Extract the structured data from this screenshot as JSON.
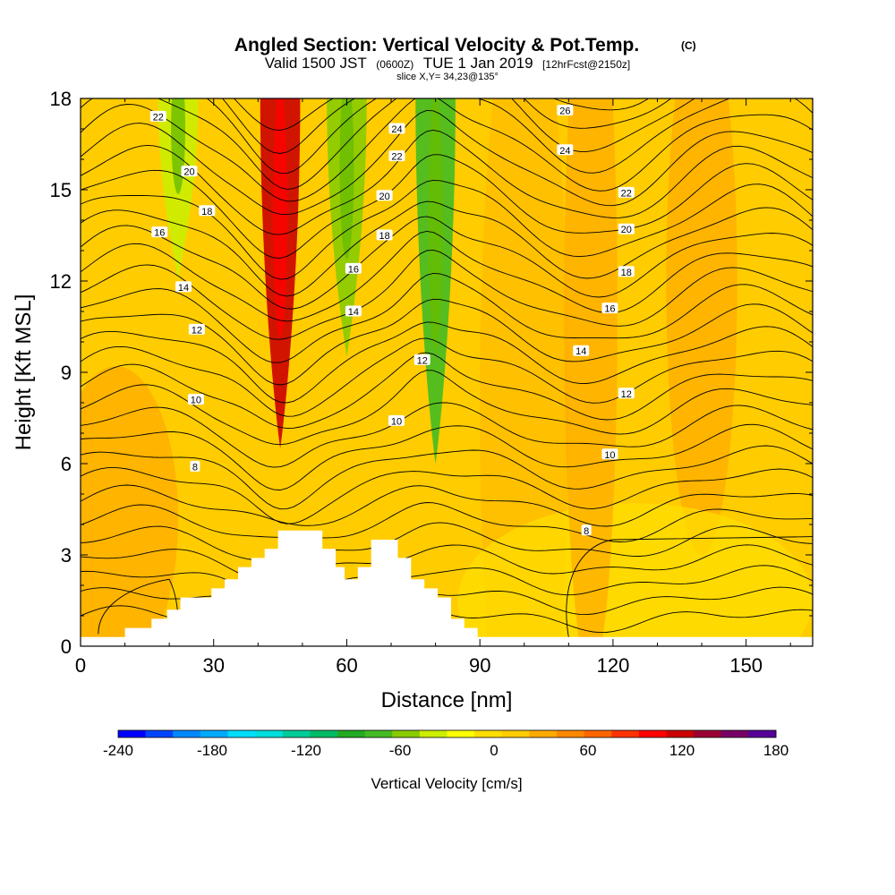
{
  "header": {
    "title": "Angled Section: Vertical Velocity & Pot.Temp.",
    "title_unit": "(C)",
    "valid_prefix": "Valid 1500 JST",
    "valid_zulu": "(0600Z)",
    "valid_date": "TUE 1 Jan 2019",
    "forecast": "[12hrFcst@2150z]",
    "slice": "slice X,Y= 34,23@135°"
  },
  "chart_data": {
    "type": "heatmap",
    "xlabel": "Distance [nm]",
    "ylabel": "Height [Kft MSL]",
    "xlim": [
      0,
      165
    ],
    "ylim": [
      0,
      18
    ],
    "x_ticks": [
      "0",
      "30",
      "60",
      "90",
      "120",
      "150"
    ],
    "y_ticks": [
      "0",
      "3",
      "6",
      "9",
      "12",
      "15",
      "18"
    ],
    "background_color": "#ffcc00",
    "updrafts": [
      {
        "x": 45,
        "z_min": 6.5,
        "z_max": 18,
        "value": 110
      },
      {
        "x": 60,
        "z_min": 9.5,
        "z_max": 18,
        "value": -50
      },
      {
        "x": 80,
        "z_min": 6,
        "z_max": 18,
        "value": -70
      },
      {
        "x": 22,
        "z_min": 12,
        "z_max": 18,
        "value": -40
      }
    ],
    "terrain_kft": [
      [
        0,
        0.3
      ],
      [
        10,
        0.3
      ],
      [
        10,
        0.6
      ],
      [
        16,
        0.6
      ],
      [
        16,
        0.9
      ],
      [
        19.5,
        0.9
      ],
      [
        19.5,
        1.2
      ],
      [
        22.5,
        1.2
      ],
      [
        22.5,
        1.6
      ],
      [
        29.5,
        1.6
      ],
      [
        29.5,
        1.9
      ],
      [
        32.5,
        1.9
      ],
      [
        32.5,
        2.2
      ],
      [
        35.5,
        2.2
      ],
      [
        35.5,
        2.6
      ],
      [
        38.5,
        2.6
      ],
      [
        38.5,
        2.9
      ],
      [
        41.5,
        2.9
      ],
      [
        41.5,
        3.2
      ],
      [
        44.5,
        3.2
      ],
      [
        44.5,
        3.8
      ],
      [
        54.5,
        3.8
      ],
      [
        54.5,
        3.2
      ],
      [
        57.5,
        3.2
      ],
      [
        57.5,
        2.6
      ],
      [
        59.5,
        2.6
      ],
      [
        59.5,
        2.2
      ],
      [
        62.5,
        2.2
      ],
      [
        62.5,
        2.6
      ],
      [
        65.5,
        2.6
      ],
      [
        65.5,
        3.5
      ],
      [
        71.5,
        3.5
      ],
      [
        71.5,
        2.9
      ],
      [
        74.5,
        2.9
      ],
      [
        74.5,
        2.2
      ],
      [
        77.5,
        2.2
      ],
      [
        77.5,
        1.9
      ],
      [
        80.5,
        1.9
      ],
      [
        80.5,
        1.6
      ],
      [
        83.5,
        1.6
      ],
      [
        83.5,
        0.9
      ],
      [
        86.5,
        0.9
      ],
      [
        86.5,
        0.6
      ],
      [
        89.5,
        0.6
      ],
      [
        89.5,
        0.3
      ],
      [
        165,
        0.3
      ]
    ],
    "theta_labels": [
      {
        "text": "22",
        "x": 17.5,
        "z": 17.4
      },
      {
        "text": "20",
        "x": 24.5,
        "z": 15.6
      },
      {
        "text": "18",
        "x": 28.5,
        "z": 14.3
      },
      {
        "text": "16",
        "x": 17.8,
        "z": 13.6
      },
      {
        "text": "14",
        "x": 23.2,
        "z": 11.8
      },
      {
        "text": "12",
        "x": 26.2,
        "z": 10.4
      },
      {
        "text": "10",
        "x": 26.0,
        "z": 8.1
      },
      {
        "text": "8",
        "x": 25.8,
        "z": 5.9
      },
      {
        "text": "24",
        "x": 71.3,
        "z": 17.0
      },
      {
        "text": "22",
        "x": 71.3,
        "z": 16.1
      },
      {
        "text": "20",
        "x": 68.5,
        "z": 14.8
      },
      {
        "text": "18",
        "x": 68.5,
        "z": 13.5
      },
      {
        "text": "16",
        "x": 61.5,
        "z": 12.4
      },
      {
        "text": "14",
        "x": 61.5,
        "z": 11.0
      },
      {
        "text": "12",
        "x": 77.0,
        "z": 9.4
      },
      {
        "text": "10",
        "x": 71.2,
        "z": 7.4
      },
      {
        "text": "26",
        "x": 109.2,
        "z": 17.6
      },
      {
        "text": "24",
        "x": 109.2,
        "z": 16.3
      },
      {
        "text": "22",
        "x": 123.0,
        "z": 14.9
      },
      {
        "text": "20",
        "x": 123.0,
        "z": 13.7
      },
      {
        "text": "18",
        "x": 123.0,
        "z": 12.3
      },
      {
        "text": "16",
        "x": 119.3,
        "z": 11.1
      },
      {
        "text": "14",
        "x": 112.8,
        "z": 9.7
      },
      {
        "text": "12",
        "x": 123.0,
        "z": 8.3
      },
      {
        "text": "10",
        "x": 119.3,
        "z": 6.3
      },
      {
        "text": "8",
        "x": 114.0,
        "z": 3.8
      }
    ]
  },
  "colorbar": {
    "label": "Vertical Velocity [cm/s]",
    "ticks": [
      "-240",
      "-180",
      "-120",
      "-60",
      "0",
      "60",
      "120",
      "180"
    ],
    "colors": [
      "#0000ff",
      "#0044ff",
      "#0088ff",
      "#00aaff",
      "#00ddff",
      "#00dddd",
      "#00cc99",
      "#00bb66",
      "#22aa22",
      "#44bb22",
      "#88cc00",
      "#ccee00",
      "#ffff00",
      "#ffdd00",
      "#ffcc00",
      "#ffaa00",
      "#ff8800",
      "#ff6600",
      "#ff3300",
      "#ff0000",
      "#cc0000",
      "#990033",
      "#770066",
      "#550099"
    ]
  }
}
